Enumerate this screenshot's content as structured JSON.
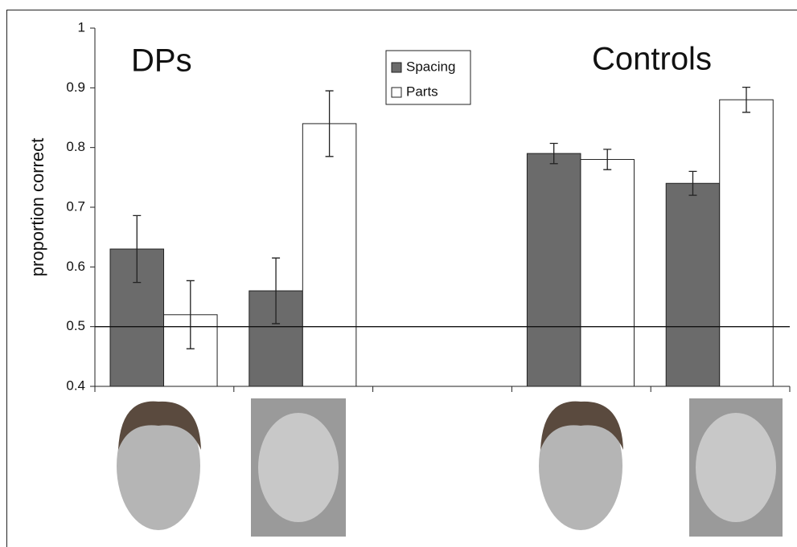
{
  "chart_data": {
    "type": "bar",
    "y_label": "proportion correct",
    "annotations": [
      "DPs",
      "Controls"
    ],
    "categories": [
      null,
      null,
      null,
      null,
      null
    ],
    "series": [
      {
        "name": "Spacing",
        "color": "#6b6b6b",
        "values": [
          0.63,
          0.56,
          null,
          0.79,
          0.74
        ],
        "errors": [
          0.056,
          0.055,
          null,
          0.017,
          0.02
        ]
      },
      {
        "name": "Parts",
        "color": "#ffffff",
        "values": [
          0.52,
          0.84,
          null,
          0.78,
          0.88
        ],
        "errors": [
          0.057,
          0.055,
          null,
          0.017,
          0.021
        ]
      }
    ],
    "reference_line": 0.5,
    "ylim": [
      0.4,
      1
    ],
    "yticks": [
      0.4,
      0.5,
      0.6,
      0.7,
      0.8,
      0.9,
      1
    ],
    "legend": "top-center"
  }
}
